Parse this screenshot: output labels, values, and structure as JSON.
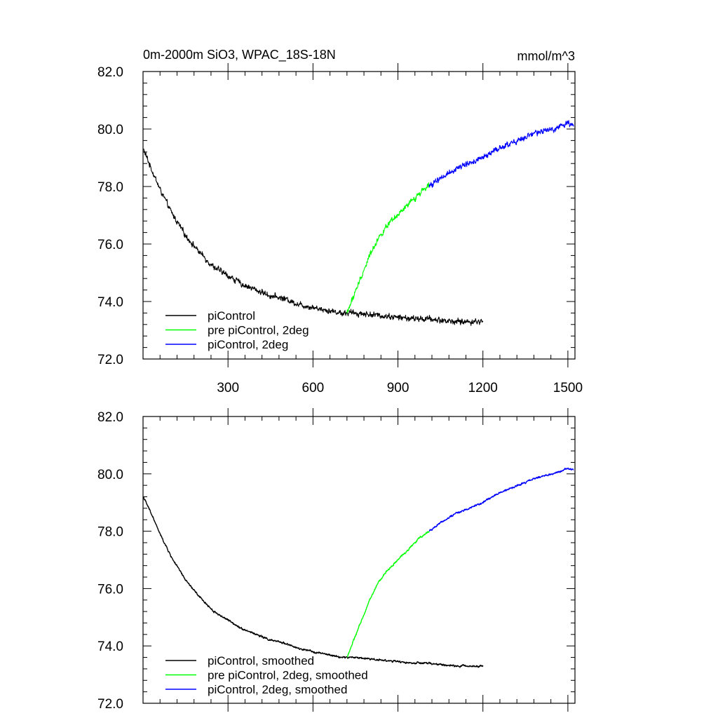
{
  "chart_data": [
    {
      "type": "line",
      "title": "0m-2000m SiO3, WPAC_18S-18N",
      "units": "mmol/m^3",
      "xlim": [
        0,
        1525
      ],
      "ylim": [
        72,
        82
      ],
      "yticks": [
        "72.0",
        "74.0",
        "76.0",
        "78.0",
        "80.0",
        "82.0"
      ],
      "xticks": [
        "300",
        "600",
        "900",
        "1200",
        "1500"
      ],
      "series": [
        {
          "name": "piControl",
          "color": "#000000",
          "noise": 0.12,
          "x": [
            1,
            30,
            60,
            100,
            150,
            200,
            250,
            300,
            350,
            400,
            450,
            500,
            550,
            600,
            650,
            700,
            750,
            800,
            850,
            900,
            950,
            1000,
            1050,
            1100,
            1150,
            1200
          ],
          "y": [
            79.3,
            78.6,
            77.9,
            77.1,
            76.3,
            75.7,
            75.2,
            74.9,
            74.6,
            74.4,
            74.2,
            74.1,
            73.9,
            73.8,
            73.7,
            73.6,
            73.6,
            73.55,
            73.5,
            73.45,
            73.4,
            73.4,
            73.35,
            73.3,
            73.3,
            73.3
          ]
        },
        {
          "name": "pre piControl, 2deg",
          "color": "#00ff00",
          "noise": 0.12,
          "x": [
            720,
            740,
            760,
            780,
            800,
            830,
            860,
            890,
            920,
            950,
            980,
            1010
          ],
          "y": [
            73.6,
            74.1,
            74.6,
            75.1,
            75.6,
            76.2,
            76.6,
            76.9,
            77.2,
            77.5,
            77.8,
            78.1
          ]
        },
        {
          "name": "piControl, 2deg",
          "color": "#0000ff",
          "noise": 0.12,
          "x": [
            1010,
            1050,
            1100,
            1150,
            1200,
            1250,
            1300,
            1350,
            1400,
            1450,
            1500,
            1520
          ],
          "y": [
            78.0,
            78.3,
            78.6,
            78.8,
            79.0,
            79.3,
            79.5,
            79.7,
            79.9,
            80.0,
            80.2,
            80.2
          ]
        }
      ]
    },
    {
      "type": "line",
      "xlim": [
        0,
        1525
      ],
      "ylim": [
        72,
        82
      ],
      "yticks": [
        "72.0",
        "74.0",
        "76.0",
        "78.0",
        "80.0",
        "82.0"
      ],
      "series": [
        {
          "name": "piControl, smoothed",
          "color": "#000000",
          "noise": 0.04,
          "x": [
            1,
            30,
            60,
            100,
            150,
            200,
            250,
            300,
            350,
            400,
            450,
            500,
            550,
            600,
            650,
            700,
            750,
            800,
            850,
            900,
            950,
            1000,
            1050,
            1100,
            1150,
            1200
          ],
          "y": [
            79.2,
            78.6,
            77.9,
            77.1,
            76.3,
            75.7,
            75.2,
            74.9,
            74.6,
            74.4,
            74.2,
            74.1,
            73.9,
            73.8,
            73.7,
            73.6,
            73.6,
            73.55,
            73.5,
            73.45,
            73.4,
            73.4,
            73.35,
            73.3,
            73.3,
            73.3
          ]
        },
        {
          "name": "pre piControl, 2deg, smoothed",
          "color": "#00ff00",
          "noise": 0.04,
          "x": [
            720,
            740,
            760,
            780,
            800,
            830,
            860,
            890,
            920,
            950,
            980,
            1010
          ],
          "y": [
            73.6,
            74.1,
            74.6,
            75.1,
            75.6,
            76.2,
            76.6,
            76.9,
            77.2,
            77.5,
            77.8,
            78.0
          ]
        },
        {
          "name": "piControl, 2deg, smoothed",
          "color": "#0000ff",
          "noise": 0.04,
          "x": [
            1010,
            1050,
            1100,
            1150,
            1200,
            1250,
            1300,
            1350,
            1400,
            1450,
            1500,
            1520
          ],
          "y": [
            78.0,
            78.3,
            78.6,
            78.8,
            79.0,
            79.3,
            79.5,
            79.7,
            79.9,
            80.0,
            80.2,
            80.15
          ]
        }
      ]
    }
  ]
}
